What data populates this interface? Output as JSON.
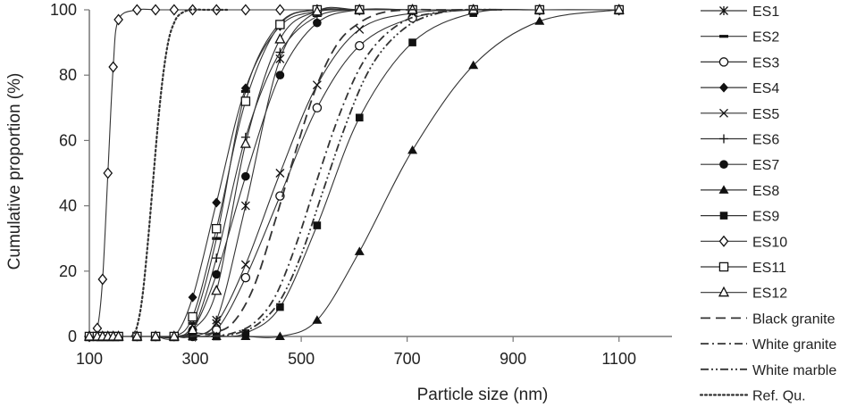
{
  "chart_data": {
    "type": "line",
    "xlabel": "Particle size (nm)",
    "ylabel": "Cumulative proportion (%)",
    "xlim": [
      100,
      1200
    ],
    "ylim": [
      0,
      100
    ],
    "xticks": [
      "100",
      "300",
      "500",
      "700",
      "900",
      "1100"
    ],
    "yticks": [
      "0",
      "20",
      "40",
      "60",
      "80",
      "100"
    ],
    "grid": false,
    "legend_position": "right",
    "series": [
      {
        "name": "ES1",
        "marker": "asterisk",
        "line": "solid",
        "x": [
          100,
          115,
          125,
          135,
          145,
          155,
          190,
          225,
          260,
          295,
          340,
          395,
          460,
          530,
          610,
          710,
          825,
          950,
          1100
        ],
        "y": [
          0,
          0,
          0,
          0,
          0,
          0,
          0,
          0,
          0,
          1,
          5,
          40,
          85,
          99.5,
          100,
          100,
          100,
          100,
          100
        ]
      },
      {
        "name": "ES2",
        "marker": "dash",
        "line": "solid",
        "x": [
          100,
          115,
          125,
          135,
          145,
          155,
          190,
          225,
          260,
          295,
          340,
          395,
          460,
          530,
          610,
          710,
          825,
          950,
          1100
        ],
        "y": [
          0,
          0,
          0,
          0,
          0,
          0,
          0,
          0,
          0,
          4,
          30,
          75,
          96,
          100,
          100,
          100,
          100,
          100,
          100
        ]
      },
      {
        "name": "ES3",
        "marker": "circle-open",
        "line": "solid",
        "x": [
          100,
          115,
          125,
          135,
          145,
          155,
          190,
          225,
          260,
          295,
          340,
          395,
          460,
          530,
          610,
          710,
          825,
          950,
          1100
        ],
        "y": [
          0,
          0,
          0,
          0,
          0,
          0,
          0,
          0,
          0,
          0,
          2,
          18,
          43,
          70,
          89,
          97.5,
          100,
          100,
          100
        ]
      },
      {
        "name": "ES4",
        "marker": "diamond-filled",
        "line": "solid",
        "x": [
          100,
          115,
          125,
          135,
          145,
          155,
          190,
          225,
          260,
          295,
          340,
          395,
          460,
          530,
          610,
          710,
          825,
          950,
          1100
        ],
        "y": [
          0,
          0,
          0,
          0,
          0,
          0,
          0,
          0,
          0,
          12,
          41,
          76,
          95,
          99.5,
          100,
          100,
          100,
          100,
          100
        ]
      },
      {
        "name": "ES5",
        "marker": "x",
        "line": "solid",
        "x": [
          100,
          115,
          125,
          135,
          145,
          155,
          190,
          225,
          260,
          295,
          340,
          395,
          460,
          530,
          610,
          710,
          825,
          950,
          1100
        ],
        "y": [
          0,
          0,
          0,
          0,
          0,
          0,
          0,
          0,
          0,
          0,
          4,
          22,
          50,
          77,
          94,
          99,
          100,
          100,
          100
        ]
      },
      {
        "name": "ES6",
        "marker": "plus",
        "line": "solid",
        "x": [
          100,
          115,
          125,
          135,
          145,
          155,
          190,
          225,
          260,
          295,
          340,
          395,
          460,
          530,
          610,
          710,
          825,
          950,
          1100
        ],
        "y": [
          0,
          0,
          0,
          0,
          0,
          0,
          0,
          0,
          0,
          2,
          24,
          61,
          87,
          98,
          100,
          100,
          100,
          100,
          100
        ]
      },
      {
        "name": "ES7",
        "marker": "circle-filled",
        "line": "solid",
        "x": [
          100,
          115,
          125,
          135,
          145,
          155,
          190,
          225,
          260,
          295,
          340,
          395,
          460,
          530,
          610,
          710,
          825,
          950,
          1100
        ],
        "y": [
          0,
          0,
          0,
          0,
          0,
          0,
          0,
          0,
          0,
          2,
          19,
          49,
          80,
          96,
          100,
          100,
          100,
          100,
          100
        ]
      },
      {
        "name": "ES8",
        "marker": "triangle-filled",
        "line": "solid",
        "x": [
          100,
          115,
          125,
          135,
          145,
          155,
          190,
          225,
          260,
          295,
          340,
          395,
          460,
          530,
          610,
          710,
          825,
          950,
          1100
        ],
        "y": [
          0,
          0,
          0,
          0,
          0,
          0,
          0,
          0,
          0,
          0,
          0,
          0,
          0,
          5,
          26,
          57,
          83,
          96.5,
          100
        ]
      },
      {
        "name": "ES9",
        "marker": "square-filled",
        "line": "solid",
        "x": [
          100,
          115,
          125,
          135,
          145,
          155,
          190,
          225,
          260,
          295,
          340,
          395,
          460,
          530,
          610,
          710,
          825,
          950,
          1100
        ],
        "y": [
          0,
          0,
          0,
          0,
          0,
          0,
          0,
          0,
          0,
          0,
          0,
          1,
          9,
          34,
          67,
          90,
          99,
          100,
          100
        ]
      },
      {
        "name": "ES10",
        "marker": "diamond-open",
        "line": "solid",
        "x": [
          100,
          115,
          125,
          135,
          145,
          155,
          190,
          225,
          260,
          295,
          340,
          395,
          460,
          530,
          610,
          710,
          825,
          950,
          1100
        ],
        "y": [
          0,
          2.5,
          17.5,
          50,
          82.5,
          97,
          100,
          100,
          100,
          100,
          100,
          100,
          100,
          100,
          100,
          100,
          100,
          100,
          100
        ]
      },
      {
        "name": "ES11",
        "marker": "square-open",
        "line": "solid",
        "x": [
          100,
          115,
          125,
          135,
          145,
          155,
          190,
          225,
          260,
          295,
          340,
          395,
          460,
          530,
          610,
          710,
          825,
          950,
          1100
        ],
        "y": [
          0,
          0,
          0,
          0,
          0,
          0,
          0,
          0,
          0,
          6,
          33,
          72,
          95.5,
          100,
          100,
          100,
          100,
          100,
          100
        ]
      },
      {
        "name": "ES12",
        "marker": "triangle-open",
        "line": "solid",
        "x": [
          100,
          115,
          125,
          135,
          145,
          155,
          190,
          225,
          260,
          295,
          340,
          395,
          460,
          530,
          610,
          710,
          825,
          950,
          1100
        ],
        "y": [
          0,
          0,
          0,
          0,
          0,
          0,
          0,
          0,
          0,
          2,
          14,
          59,
          91,
          99.5,
          100,
          100,
          100,
          100,
          100
        ]
      },
      {
        "name": "Black granite",
        "marker": "none",
        "line": "dash",
        "x": [
          290,
          330,
          370,
          410,
          450,
          490,
          530,
          570,
          610,
          650,
          700,
          760,
          850
        ],
        "y": [
          0,
          1,
          4,
          15,
          35,
          57,
          77,
          90,
          96,
          99,
          100,
          100,
          100
        ]
      },
      {
        "name": "White granite",
        "marker": "none",
        "line": "dashdot",
        "x": [
          330,
          370,
          410,
          450,
          490,
          530,
          570,
          610,
          650,
          700,
          750,
          800,
          880
        ],
        "y": [
          0,
          1,
          4,
          12,
          28,
          48,
          67,
          82,
          91,
          97,
          99,
          100,
          100
        ]
      },
      {
        "name": "White marble",
        "marker": "none",
        "line": "dashdotdot",
        "x": [
          340,
          380,
          420,
          460,
          500,
          540,
          580,
          620,
          660,
          710,
          760,
          810,
          880
        ],
        "y": [
          0,
          1,
          4,
          11,
          25,
          44,
          63,
          79,
          89,
          96,
          99,
          100,
          100
        ]
      },
      {
        "name": "Ref. Qu.",
        "marker": "none",
        "line": "dotted",
        "x": [
          180,
          190,
          200,
          210,
          220,
          230,
          240,
          250,
          260,
          270,
          290,
          320,
          360
        ],
        "y": [
          0,
          3,
          12,
          28,
          47,
          66,
          81,
          91,
          96,
          98.5,
          100,
          100,
          100
        ]
      }
    ]
  }
}
